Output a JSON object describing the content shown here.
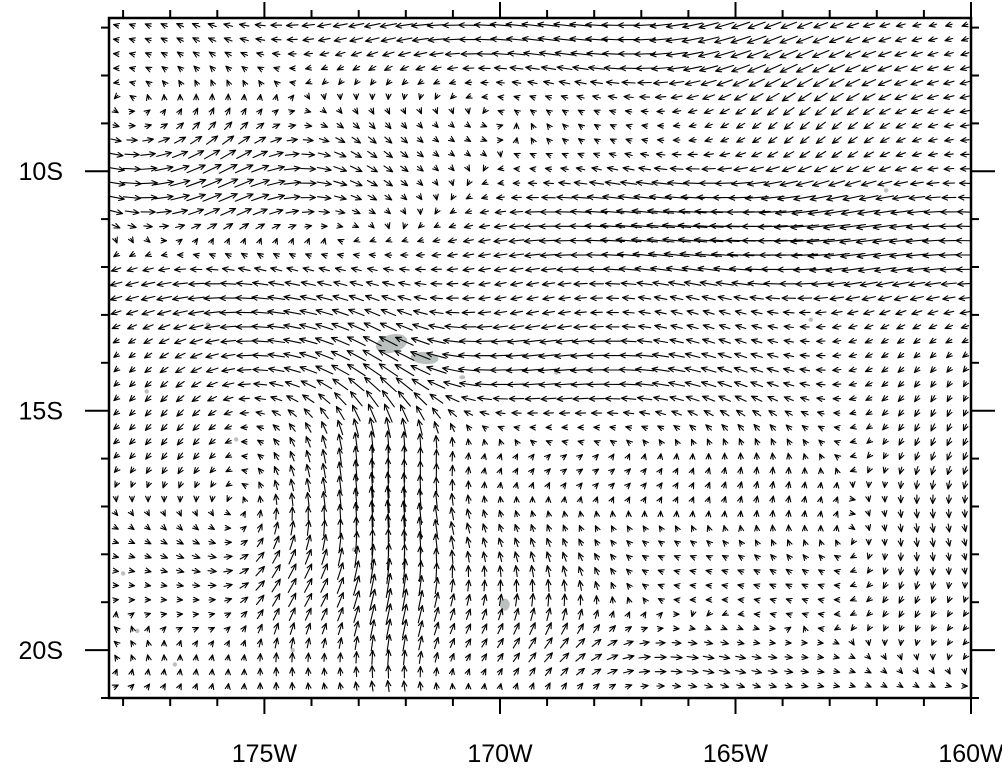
{
  "map": {
    "type": "wind-vector-map",
    "region": {
      "lon_range": [
        -178.3,
        -160
      ],
      "lat_range": [
        -21,
        -6.8
      ]
    },
    "x_ticks": [
      {
        "value": -175,
        "label": "175W"
      },
      {
        "value": -170,
        "label": "170W"
      },
      {
        "value": -165,
        "label": "165W"
      },
      {
        "value": -160,
        "label": "160W"
      }
    ],
    "y_ticks": [
      {
        "value": -10,
        "label": "10S"
      },
      {
        "value": -15,
        "label": "15S"
      },
      {
        "value": -20,
        "label": "20S"
      }
    ],
    "land_color": "#b9c1bf",
    "vector_color": "#000000",
    "frame_color": "#000000",
    "islands": [
      {
        "name": "",
        "lon": -172.3,
        "lat": -13.6
      },
      {
        "name": "",
        "lon": -171.6,
        "lat": -13.9
      },
      {
        "name": "",
        "lon": -169.9,
        "lat": -19.05
      },
      {
        "name": "",
        "lon": -170.8,
        "lat": -14.3
      }
    ]
  }
}
